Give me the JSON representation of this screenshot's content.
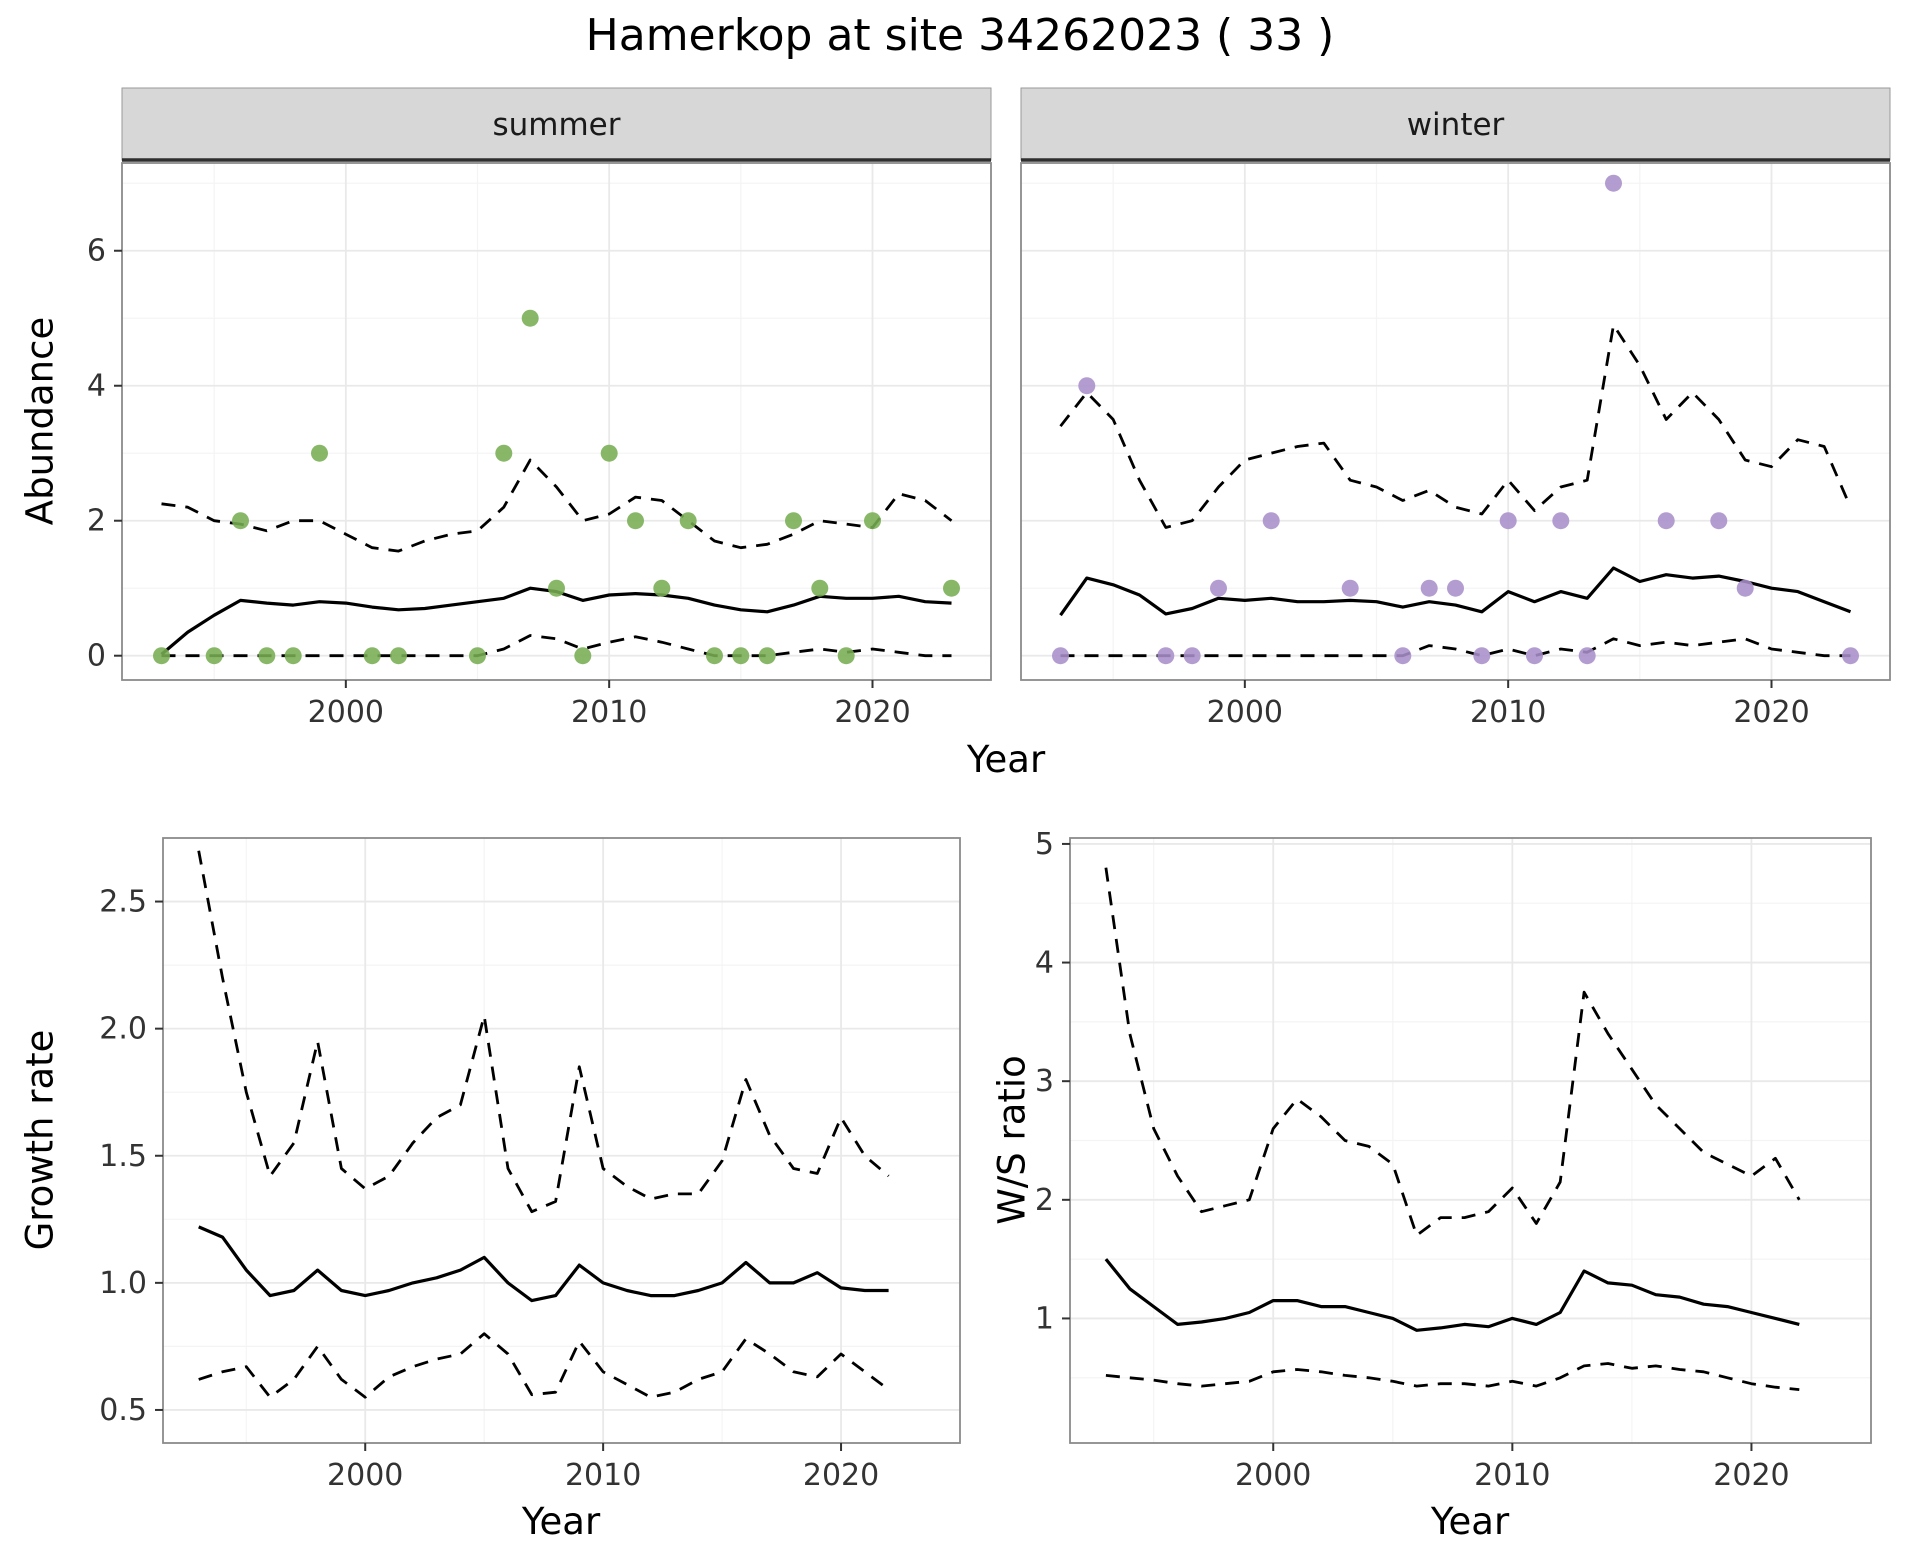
{
  "title": "Hamerkop at site 34262023 ( 33 )",
  "colors": {
    "summer_point": "#77ad53",
    "winter_point": "#a890c9",
    "line": "#000000",
    "strip_bg": "#d7d7d7",
    "panel_border": "#8a8a8a",
    "grid_major": "#e9e9e9",
    "grid_minor": "#f4f4f4",
    "tick_text": "#333333"
  },
  "chart_data": [
    {
      "id": "abundance",
      "type": "line",
      "facets": [
        "summer",
        "winter"
      ],
      "xlabel": "Year",
      "ylabel": "Abundance",
      "xlim": [
        1991.5,
        2024.5
      ],
      "ylim": [
        -0.36,
        7.3
      ],
      "xticks": [
        2000,
        2010,
        2020
      ],
      "xtick_labels": [
        "2000",
        "2010",
        "2020"
      ],
      "yticks": [
        0,
        2,
        4,
        6
      ],
      "ytick_labels": [
        "0",
        "2",
        "4",
        "6"
      ],
      "panels": [
        {
          "facet": "summer",
          "point_color": "#77ad53",
          "points": [
            [
              1993,
              0
            ],
            [
              1995,
              0
            ],
            [
              1996,
              2
            ],
            [
              1997,
              0
            ],
            [
              1998,
              0
            ],
            [
              1999,
              3
            ],
            [
              2001,
              0
            ],
            [
              2002,
              0
            ],
            [
              2005,
              0
            ],
            [
              2006,
              3
            ],
            [
              2007,
              5
            ],
            [
              2008,
              1
            ],
            [
              2009,
              0
            ],
            [
              2010,
              3
            ],
            [
              2011,
              2
            ],
            [
              2012,
              1
            ],
            [
              2013,
              2
            ],
            [
              2014,
              0
            ],
            [
              2015,
              0
            ],
            [
              2016,
              0
            ],
            [
              2017,
              2
            ],
            [
              2018,
              1
            ],
            [
              2019,
              0
            ],
            [
              2020,
              2
            ],
            [
              2023,
              1
            ]
          ],
          "x": [
            1993,
            1994,
            1995,
            1996,
            1997,
            1998,
            1999,
            2000,
            2001,
            2002,
            2003,
            2004,
            2005,
            2006,
            2007,
            2008,
            2009,
            2010,
            2011,
            2012,
            2013,
            2014,
            2015,
            2016,
            2017,
            2018,
            2019,
            2020,
            2021,
            2022,
            2023
          ],
          "series": [
            {
              "name": "median",
              "style": "solid",
              "y": [
                0.02,
                0.35,
                0.6,
                0.82,
                0.78,
                0.75,
                0.8,
                0.78,
                0.72,
                0.68,
                0.7,
                0.75,
                0.8,
                0.85,
                1.0,
                0.95,
                0.82,
                0.9,
                0.92,
                0.9,
                0.85,
                0.75,
                0.68,
                0.65,
                0.75,
                0.88,
                0.85,
                0.85,
                0.88,
                0.8,
                0.78
              ]
            },
            {
              "name": "upper_ci",
              "style": "dashed",
              "y": [
                2.25,
                2.2,
                2.0,
                1.95,
                1.85,
                2.0,
                2.0,
                1.8,
                1.6,
                1.55,
                1.7,
                1.8,
                1.85,
                2.2,
                2.9,
                2.5,
                2.0,
                2.1,
                2.35,
                2.3,
                2.0,
                1.7,
                1.6,
                1.65,
                1.8,
                2.0,
                1.95,
                1.9,
                2.4,
                2.3,
                2.0
              ]
            },
            {
              "name": "lower_ci",
              "style": "dashed",
              "y": [
                0,
                0,
                0,
                0,
                0,
                0,
                0,
                0,
                0,
                0,
                0,
                0,
                0,
                0.1,
                0.3,
                0.25,
                0.1,
                0.2,
                0.28,
                0.2,
                0.1,
                0,
                0,
                0,
                0.05,
                0.1,
                0.05,
                0.1,
                0.05,
                0,
                0
              ]
            }
          ]
        },
        {
          "facet": "winter",
          "point_color": "#a890c9",
          "points": [
            [
              1993,
              0
            ],
            [
              1994,
              4
            ],
            [
              1997,
              0
            ],
            [
              1998,
              0
            ],
            [
              1999,
              1
            ],
            [
              2001,
              2
            ],
            [
              2004,
              1
            ],
            [
              2006,
              0
            ],
            [
              2007,
              1
            ],
            [
              2008,
              1
            ],
            [
              2009,
              0
            ],
            [
              2010,
              2
            ],
            [
              2011,
              0
            ],
            [
              2012,
              2
            ],
            [
              2013,
              0
            ],
            [
              2014,
              7
            ],
            [
              2016,
              2
            ],
            [
              2018,
              2
            ],
            [
              2019,
              1
            ],
            [
              2023,
              0
            ]
          ],
          "x": [
            1993,
            1994,
            1995,
            1996,
            1997,
            1998,
            1999,
            2000,
            2001,
            2002,
            2003,
            2004,
            2005,
            2006,
            2007,
            2008,
            2009,
            2010,
            2011,
            2012,
            2013,
            2014,
            2015,
            2016,
            2017,
            2018,
            2019,
            2020,
            2021,
            2022,
            2023
          ],
          "series": [
            {
              "name": "median",
              "style": "solid",
              "y": [
                0.6,
                1.15,
                1.05,
                0.9,
                0.62,
                0.7,
                0.85,
                0.82,
                0.85,
                0.8,
                0.8,
                0.82,
                0.8,
                0.72,
                0.8,
                0.75,
                0.65,
                0.95,
                0.8,
                0.95,
                0.85,
                1.3,
                1.1,
                1.2,
                1.15,
                1.18,
                1.1,
                1.0,
                0.95,
                0.8,
                0.65
              ]
            },
            {
              "name": "upper_ci",
              "style": "dashed",
              "y": [
                3.4,
                3.9,
                3.5,
                2.6,
                1.9,
                2.0,
                2.5,
                2.9,
                3.0,
                3.1,
                3.15,
                2.6,
                2.5,
                2.3,
                2.45,
                2.2,
                2.1,
                2.6,
                2.15,
                2.5,
                2.6,
                4.9,
                4.3,
                3.5,
                3.9,
                3.5,
                2.9,
                2.8,
                3.2,
                3.1,
                2.2
              ]
            },
            {
              "name": "lower_ci",
              "style": "dashed",
              "y": [
                0,
                0,
                0,
                0,
                0,
                0,
                0,
                0,
                0,
                0,
                0,
                0,
                0,
                0,
                0.15,
                0.1,
                0,
                0.1,
                0,
                0.1,
                0.05,
                0.25,
                0.15,
                0.2,
                0.15,
                0.2,
                0.25,
                0.1,
                0.05,
                0,
                0
              ]
            }
          ]
        }
      ]
    },
    {
      "id": "growth-rate",
      "type": "line",
      "xlabel": "Year",
      "ylabel": "Growth rate",
      "xlim": [
        1991.5,
        2025.0
      ],
      "ylim": [
        0.37,
        2.75
      ],
      "xticks": [
        2000,
        2010,
        2020
      ],
      "xtick_labels": [
        "2000",
        "2010",
        "2020"
      ],
      "yticks": [
        0.5,
        1.0,
        1.5,
        2.0,
        2.5
      ],
      "ytick_labels": [
        "0.5",
        "1.0",
        "1.5",
        "2.0",
        "2.5"
      ],
      "panels": [
        {
          "x": [
            1993,
            1994,
            1995,
            1996,
            1997,
            1998,
            1999,
            2000,
            2001,
            2002,
            2003,
            2004,
            2005,
            2006,
            2007,
            2008,
            2009,
            2010,
            2011,
            2012,
            2013,
            2014,
            2015,
            2016,
            2017,
            2018,
            2019,
            2020,
            2021,
            2022
          ],
          "series": [
            {
              "name": "median",
              "style": "solid",
              "y": [
                1.22,
                1.18,
                1.05,
                0.95,
                0.97,
                1.05,
                0.97,
                0.95,
                0.97,
                1.0,
                1.02,
                1.05,
                1.1,
                1.0,
                0.93,
                0.95,
                1.07,
                1.0,
                0.97,
                0.95,
                0.95,
                0.97,
                1.0,
                1.08,
                1.0,
                1.0,
                1.04,
                0.98,
                0.97,
                0.97
              ]
            },
            {
              "name": "upper_ci",
              "style": "dashed",
              "y": [
                2.7,
                2.2,
                1.75,
                1.42,
                1.55,
                1.95,
                1.45,
                1.37,
                1.42,
                1.55,
                1.65,
                1.7,
                2.05,
                1.45,
                1.28,
                1.32,
                1.85,
                1.45,
                1.38,
                1.33,
                1.35,
                1.35,
                1.48,
                1.8,
                1.58,
                1.45,
                1.43,
                1.65,
                1.5,
                1.42
              ]
            },
            {
              "name": "lower_ci",
              "style": "dashed",
              "y": [
                0.62,
                0.65,
                0.67,
                0.55,
                0.62,
                0.75,
                0.62,
                0.55,
                0.63,
                0.67,
                0.7,
                0.72,
                0.8,
                0.72,
                0.56,
                0.57,
                0.77,
                0.65,
                0.6,
                0.55,
                0.57,
                0.62,
                0.65,
                0.78,
                0.72,
                0.65,
                0.63,
                0.72,
                0.65,
                0.58
              ]
            }
          ]
        }
      ]
    },
    {
      "id": "ws-ratio",
      "type": "line",
      "xlabel": "Year",
      "ylabel": "W/S ratio",
      "xlim": [
        1991.5,
        2025.0
      ],
      "ylim": [
        -0.05,
        5.05
      ],
      "xticks": [
        2000,
        2010,
        2020
      ],
      "xtick_labels": [
        "2000",
        "2010",
        "2020"
      ],
      "yticks": [
        1,
        2,
        3,
        4,
        5
      ],
      "ytick_labels": [
        "1",
        "2",
        "3",
        "4",
        "5"
      ],
      "panels": [
        {
          "x": [
            1993,
            1994,
            1995,
            1996,
            1997,
            1998,
            1999,
            2000,
            2001,
            2002,
            2003,
            2004,
            2005,
            2006,
            2007,
            2008,
            2009,
            2010,
            2011,
            2012,
            2013,
            2014,
            2015,
            2016,
            2017,
            2018,
            2019,
            2020,
            2021,
            2022
          ],
          "series": [
            {
              "name": "median",
              "style": "solid",
              "y": [
                1.5,
                1.25,
                1.1,
                0.95,
                0.97,
                1.0,
                1.05,
                1.15,
                1.15,
                1.1,
                1.1,
                1.05,
                1.0,
                0.9,
                0.92,
                0.95,
                0.93,
                1.0,
                0.95,
                1.05,
                1.4,
                1.3,
                1.28,
                1.2,
                1.18,
                1.12,
                1.1,
                1.05,
                1.0,
                0.95
              ]
            },
            {
              "name": "upper_ci",
              "style": "dashed",
              "y": [
                4.8,
                3.4,
                2.6,
                2.2,
                1.9,
                1.95,
                2.0,
                2.6,
                2.85,
                2.7,
                2.5,
                2.45,
                2.3,
                1.7,
                1.85,
                1.85,
                1.9,
                2.1,
                1.8,
                2.15,
                3.75,
                3.4,
                3.1,
                2.8,
                2.6,
                2.4,
                2.3,
                2.2,
                2.35,
                2.0
              ]
            },
            {
              "name": "lower_ci",
              "style": "dashed",
              "y": [
                0.52,
                0.5,
                0.48,
                0.45,
                0.43,
                0.45,
                0.47,
                0.55,
                0.57,
                0.55,
                0.52,
                0.5,
                0.47,
                0.43,
                0.45,
                0.45,
                0.43,
                0.47,
                0.43,
                0.5,
                0.6,
                0.62,
                0.58,
                0.6,
                0.57,
                0.55,
                0.5,
                0.45,
                0.42,
                0.4
              ]
            }
          ]
        }
      ]
    }
  ]
}
